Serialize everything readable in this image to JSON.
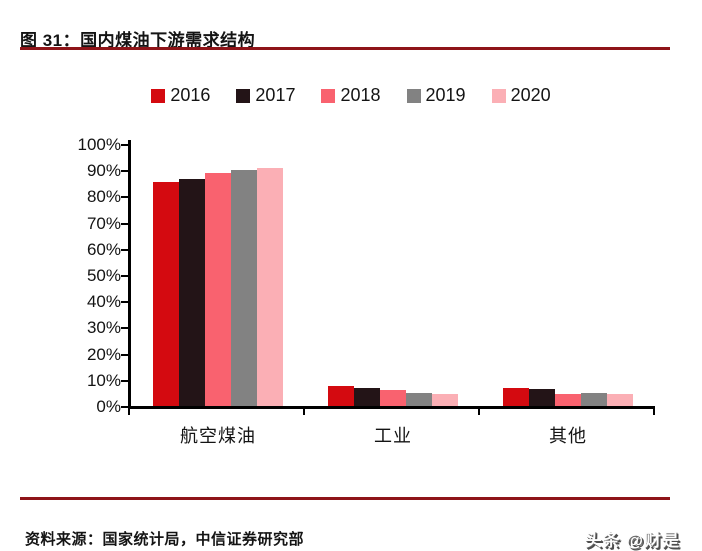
{
  "title": "图 31：国内煤油下游需求结构",
  "source_note": "资料来源：国家统计局，中信证券研究部",
  "watermark": "头条 @财是",
  "colors": {
    "rule_red": "#8e1418",
    "axis_black": "#000000"
  },
  "chart_data": {
    "type": "bar",
    "title": "国内煤油下游需求结构",
    "categories": [
      "航空煤油",
      "工业",
      "其他"
    ],
    "series": [
      {
        "name": "2016",
        "color": "#d40a10",
        "values": [
          85.5,
          7.5,
          7.0
        ]
      },
      {
        "name": "2017",
        "color": "#231417",
        "values": [
          86.5,
          7.0,
          6.5
        ]
      },
      {
        "name": "2018",
        "color": "#f9626f",
        "values": [
          89.0,
          6.0,
          4.5
        ]
      },
      {
        "name": "2019",
        "color": "#828282",
        "values": [
          90.0,
          5.0,
          5.0
        ]
      },
      {
        "name": "2020",
        "color": "#fbafb5",
        "values": [
          91.0,
          4.5,
          4.5
        ]
      }
    ],
    "xlabel": "",
    "ylabel": "",
    "ylim": [
      0,
      100
    ],
    "y_tick_labels": [
      "0%",
      "10%",
      "20%",
      "30%",
      "40%",
      "50%",
      "60%",
      "70%",
      "80%",
      "90%",
      "100%"
    ],
    "grid": false,
    "legend_position": "top"
  }
}
